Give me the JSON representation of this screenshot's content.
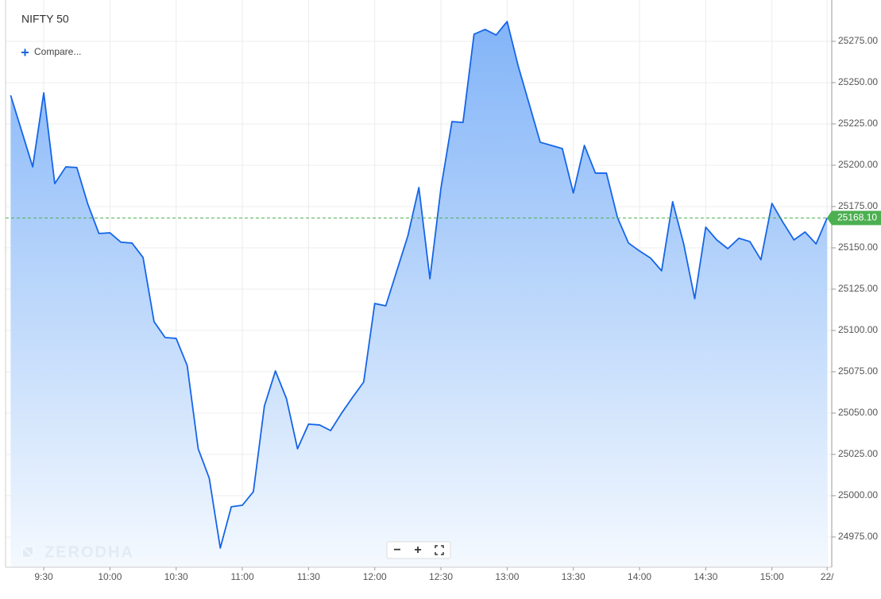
{
  "chart_data": {
    "type": "area",
    "title": "NIFTY 50",
    "compare_label": "Compare...",
    "watermark": "ZERODHA",
    "zoom_controls": [
      "−",
      "+"
    ],
    "x": [
      555,
      560,
      565,
      570,
      575,
      580,
      585,
      590,
      595,
      600,
      605,
      610,
      615,
      620,
      625,
      630,
      635,
      640,
      645,
      650,
      655,
      660,
      665,
      670,
      675,
      680,
      685,
      690,
      695,
      700,
      705,
      710,
      715,
      720,
      725,
      730,
      735,
      740,
      745,
      750,
      755,
      760,
      765,
      770,
      775,
      780,
      785,
      790,
      795,
      800,
      805,
      810,
      815,
      820,
      825,
      830,
      835,
      840,
      845,
      850,
      855,
      860,
      865,
      870,
      875,
      880,
      885,
      890,
      895,
      900,
      905,
      910,
      915,
      920,
      925
    ],
    "series": [
      {
        "color": "#1565e8",
        "values": [
          25242.3,
          25220.7,
          25199.0,
          25243.8,
          25188.9,
          25199.0,
          25198.6,
          25176.4,
          25158.7,
          25159.1,
          25153.4,
          25152.9,
          25144.2,
          25105.3,
          25095.7,
          25095.2,
          25078.8,
          25028.4,
          25010.6,
          24968.3,
          24993.3,
          24994.2,
          25002.4,
          25054.3,
          25075.5,
          25058.7,
          25028.4,
          25043.3,
          25042.8,
          25039.4,
          25050.0,
          25059.6,
          25068.8,
          25116.3,
          25114.9,
          25136.1,
          25157.2,
          25186.5,
          25131.3,
          25186.1,
          25226.4,
          25225.9,
          25279.3,
          25282.2,
          25278.8,
          25287.0,
          25260.1,
          25237.0,
          25213.9,
          25212.0,
          25210.1,
          25183.2,
          25212.0,
          25195.2,
          25195.2,
          25168.3,
          25152.9,
          25148.1,
          25143.8,
          25136.1,
          25177.9,
          25152.4,
          25119.2,
          25162.5,
          25154.8,
          25149.5,
          25155.8,
          25153.8,
          25142.8,
          25176.9,
          25165.4,
          25154.8,
          25159.6,
          25152.4,
          25168.1
        ]
      }
    ],
    "xlim": [
      552.7,
      927.1
    ],
    "xticks": [
      {
        "value": 570,
        "label": "9:30"
      },
      {
        "value": 600,
        "label": "10:00"
      },
      {
        "value": 630,
        "label": "10:30"
      },
      {
        "value": 660,
        "label": "11:00"
      },
      {
        "value": 690,
        "label": "11:30"
      },
      {
        "value": 720,
        "label": "12:00"
      },
      {
        "value": 750,
        "label": "12:30"
      },
      {
        "value": 780,
        "label": "13:00"
      },
      {
        "value": 810,
        "label": "13:30"
      },
      {
        "value": 840,
        "label": "14:00"
      },
      {
        "value": 870,
        "label": "14:30"
      },
      {
        "value": 900,
        "label": "15:00"
      },
      {
        "value": 925,
        "label": "22/"
      }
    ],
    "ylim": [
      24956.7,
      25300
    ],
    "yticks": [
      {
        "value": 24975,
        "label": "24975.00"
      },
      {
        "value": 25000,
        "label": "25000.00"
      },
      {
        "value": 25025,
        "label": "25025.00"
      },
      {
        "value": 25050,
        "label": "25050.00"
      },
      {
        "value": 25075,
        "label": "25075.00"
      },
      {
        "value": 25100,
        "label": "25100.00"
      },
      {
        "value": 25125,
        "label": "25125.00"
      },
      {
        "value": 25150,
        "label": "25150.00"
      },
      {
        "value": 25175,
        "label": "25175.00"
      },
      {
        "value": 25200,
        "label": "25200.00"
      },
      {
        "value": 25225,
        "label": "25225.00"
      },
      {
        "value": 25250,
        "label": "25250.00"
      },
      {
        "value": 25275,
        "label": "25275.00"
      }
    ],
    "grid": true,
    "last_price": {
      "value": 25168.1,
      "label": "25168.10",
      "color": "#4caf50"
    }
  }
}
